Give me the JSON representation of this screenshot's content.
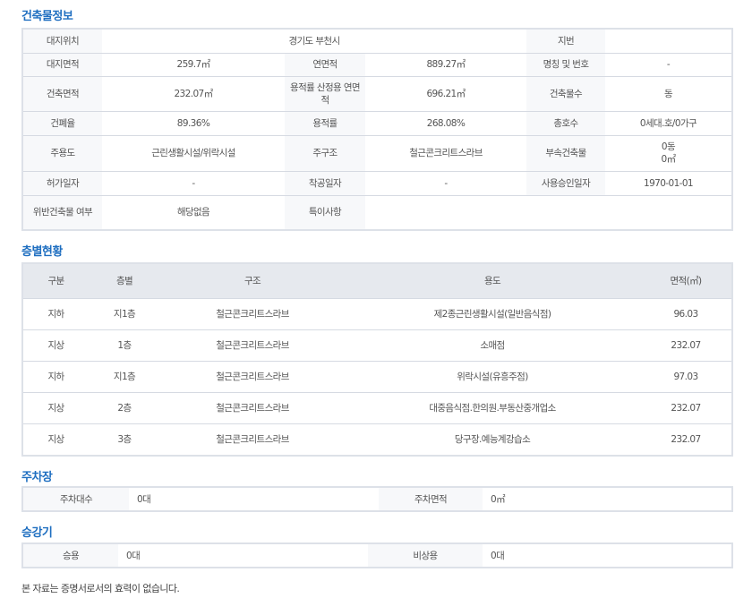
{
  "building": {
    "title": "건축물정보",
    "site_location_label": "대지위치",
    "site_location": "경기도 부천시",
    "lot_number_label": "지번",
    "lot_number": "",
    "site_area_label": "대지면적",
    "site_area": "259.7㎡",
    "total_floor_area_label": "연면적",
    "total_floor_area": "889.27㎡",
    "name_label": "명칭 및 번호",
    "name": "-",
    "building_area_label": "건축면적",
    "building_area": "232.07㎡",
    "far_area_label": "용적률 산정용 연면적",
    "far_area": "696.21㎡",
    "building_count_label": "건축물수",
    "building_count": "동",
    "coverage_label": "건폐율",
    "coverage": "89.36%",
    "far_label": "용적률",
    "far": "268.08%",
    "units_label": "총호수",
    "units": "0세대.호/0가구",
    "main_use_label": "주용도",
    "main_use": "근린생활시설/위락시설",
    "structure_label": "주구조",
    "structure": "철근콘크리트스라브",
    "annex_label": "부속건축물",
    "annex_count": "0동",
    "annex_area": "0㎡",
    "permit_date_label": "허가일자",
    "permit_date": "-",
    "start_date_label": "착공일자",
    "start_date": "-",
    "approval_date_label": "사용승인일자",
    "approval_date": "1970-01-01",
    "violation_label": "위반건축물 여부",
    "violation": "해당없음",
    "remarks_label": "특이사항",
    "remarks": ""
  },
  "floors": {
    "title": "층별현황",
    "headers": [
      "구분",
      "층별",
      "구조",
      "용도",
      "면적(㎡)"
    ],
    "rows": [
      [
        "지하",
        "지1층",
        "철근콘크리트스라브",
        "제2종근린생활시설(일반음식점)",
        "96.03"
      ],
      [
        "지상",
        "1층",
        "철근콘크리트스라브",
        "소매점",
        "232.07"
      ],
      [
        "지하",
        "지1층",
        "철근콘크리트스라브",
        "위락시설(유흥주점)",
        "97.03"
      ],
      [
        "지상",
        "2층",
        "철근콘크리트스라브",
        "대중음식점.한의원.부동산중개업소",
        "232.07"
      ],
      [
        "지상",
        "3층",
        "철근콘크리트스라브",
        "당구장.예능계강습소",
        "232.07"
      ]
    ]
  },
  "parking": {
    "title": "주차장",
    "count_label": "주차대수",
    "count": "0대",
    "area_label": "주차면적",
    "area": "0㎡"
  },
  "elevator": {
    "title": "승강기",
    "passenger_label": "승용",
    "passenger": "0대",
    "emergency_label": "비상용",
    "emergency": "0대"
  },
  "footer_note": "본 자료는 증명서로서의 효력이 없습니다."
}
